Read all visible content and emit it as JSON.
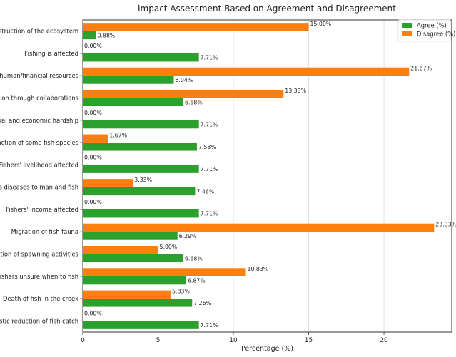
{
  "chart_data": {
    "type": "bar",
    "orientation": "horizontal",
    "title": "Impact Assessment Based on Agreement and Disagreement",
    "xlabel": "Percentage (%)",
    "ylabel": "",
    "xlim": [
      0,
      24.5
    ],
    "xticks": [
      0,
      5,
      10,
      15,
      20
    ],
    "grid": true,
    "legend_position": "top-right",
    "categories": [
      "Destruction of the ecosystem",
      "Fishing is affected",
      "Loss of human/financial resources",
      "Corruption through collaborations",
      "Social and economic hardship",
      "Extinction of some fish species",
      "Fishers' livelihood affected",
      "Causes diseases to man and fish",
      "Fishers' income affected",
      "Migration of fish fauna",
      "Destruction of spawning activities",
      "Fishers unsure when to fish",
      "Death of fish in the creek",
      "Drastic reduction of fish catch"
    ],
    "series": [
      {
        "name": "Agree (%)",
        "color": "#2ca02c",
        "values": [
          0.88,
          7.71,
          6.04,
          6.68,
          7.71,
          7.58,
          7.71,
          7.46,
          7.71,
          6.29,
          6.68,
          6.87,
          7.26,
          7.71
        ],
        "labels": [
          "0.88%",
          "7.71%",
          "6.04%",
          "6.68%",
          "7.71%",
          "7.58%",
          "7.71%",
          "7.46%",
          "7.71%",
          "6.29%",
          "6.68%",
          "6.87%",
          "7.26%",
          "7.71%"
        ]
      },
      {
        "name": "Disagree (%)",
        "color": "#ff7f0e",
        "values": [
          15.0,
          0.0,
          21.67,
          13.33,
          0.0,
          1.67,
          0.0,
          3.33,
          0.0,
          23.33,
          5.0,
          10.83,
          5.83,
          0.0
        ],
        "labels": [
          "15.00%",
          "0.00%",
          "21.67%",
          "13.33%",
          "0.00%",
          "1.67%",
          "0.00%",
          "3.33%",
          "0.00%",
          "23.33%",
          "5.00%",
          "10.83%",
          "5.83%",
          "0.00%"
        ]
      }
    ]
  }
}
